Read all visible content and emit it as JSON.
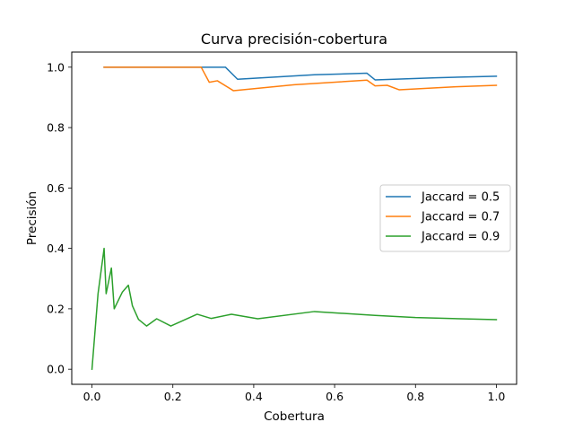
{
  "chart_data": {
    "type": "line",
    "title": "Curva precisión-cobertura",
    "xlabel": "Cobertura",
    "ylabel": "Precisión",
    "xlim": [
      -0.05,
      1.05
    ],
    "ylim": [
      -0.05,
      1.05
    ],
    "xticks": [
      0.0,
      0.2,
      0.4,
      0.6,
      0.8,
      1.0
    ],
    "xtick_labels": [
      "0.0",
      "0.2",
      "0.4",
      "0.6",
      "0.8",
      "1.0"
    ],
    "yticks": [
      0.0,
      0.2,
      0.4,
      0.6,
      0.8,
      1.0
    ],
    "ytick_labels": [
      "0.0",
      "0.2",
      "0.4",
      "0.6",
      "0.8",
      "1.0"
    ],
    "grid": false,
    "legend_position": "center-right",
    "series": [
      {
        "name": "Jaccard = 0.5",
        "color": "#1f77b4",
        "points": [
          [
            0.03,
            1.0
          ],
          [
            0.33,
            1.0
          ],
          [
            0.36,
            0.96
          ],
          [
            0.55,
            0.975
          ],
          [
            0.68,
            0.98
          ],
          [
            0.7,
            0.958
          ],
          [
            0.85,
            0.965
          ],
          [
            1.0,
            0.97
          ]
        ]
      },
      {
        "name": "Jaccard = 0.7",
        "color": "#ff7f0e",
        "points": [
          [
            0.03,
            1.0
          ],
          [
            0.27,
            1.0
          ],
          [
            0.29,
            0.95
          ],
          [
            0.31,
            0.955
          ],
          [
            0.35,
            0.922
          ],
          [
            0.5,
            0.942
          ],
          [
            0.68,
            0.957
          ],
          [
            0.7,
            0.938
          ],
          [
            0.73,
            0.94
          ],
          [
            0.76,
            0.925
          ],
          [
            0.9,
            0.935
          ],
          [
            1.0,
            0.94
          ]
        ]
      },
      {
        "name": "Jaccard = 0.9",
        "color": "#2ca02c",
        "points": [
          [
            0.0,
            0.0
          ],
          [
            0.015,
            0.25
          ],
          [
            0.03,
            0.4
          ],
          [
            0.035,
            0.25
          ],
          [
            0.048,
            0.335
          ],
          [
            0.055,
            0.2
          ],
          [
            0.075,
            0.255
          ],
          [
            0.09,
            0.278
          ],
          [
            0.1,
            0.21
          ],
          [
            0.115,
            0.165
          ],
          [
            0.135,
            0.143
          ],
          [
            0.16,
            0.167
          ],
          [
            0.195,
            0.143
          ],
          [
            0.26,
            0.182
          ],
          [
            0.295,
            0.168
          ],
          [
            0.345,
            0.182
          ],
          [
            0.41,
            0.167
          ],
          [
            0.55,
            0.191
          ],
          [
            0.7,
            0.178
          ],
          [
            0.8,
            0.171
          ],
          [
            1.0,
            0.164
          ]
        ]
      }
    ]
  }
}
